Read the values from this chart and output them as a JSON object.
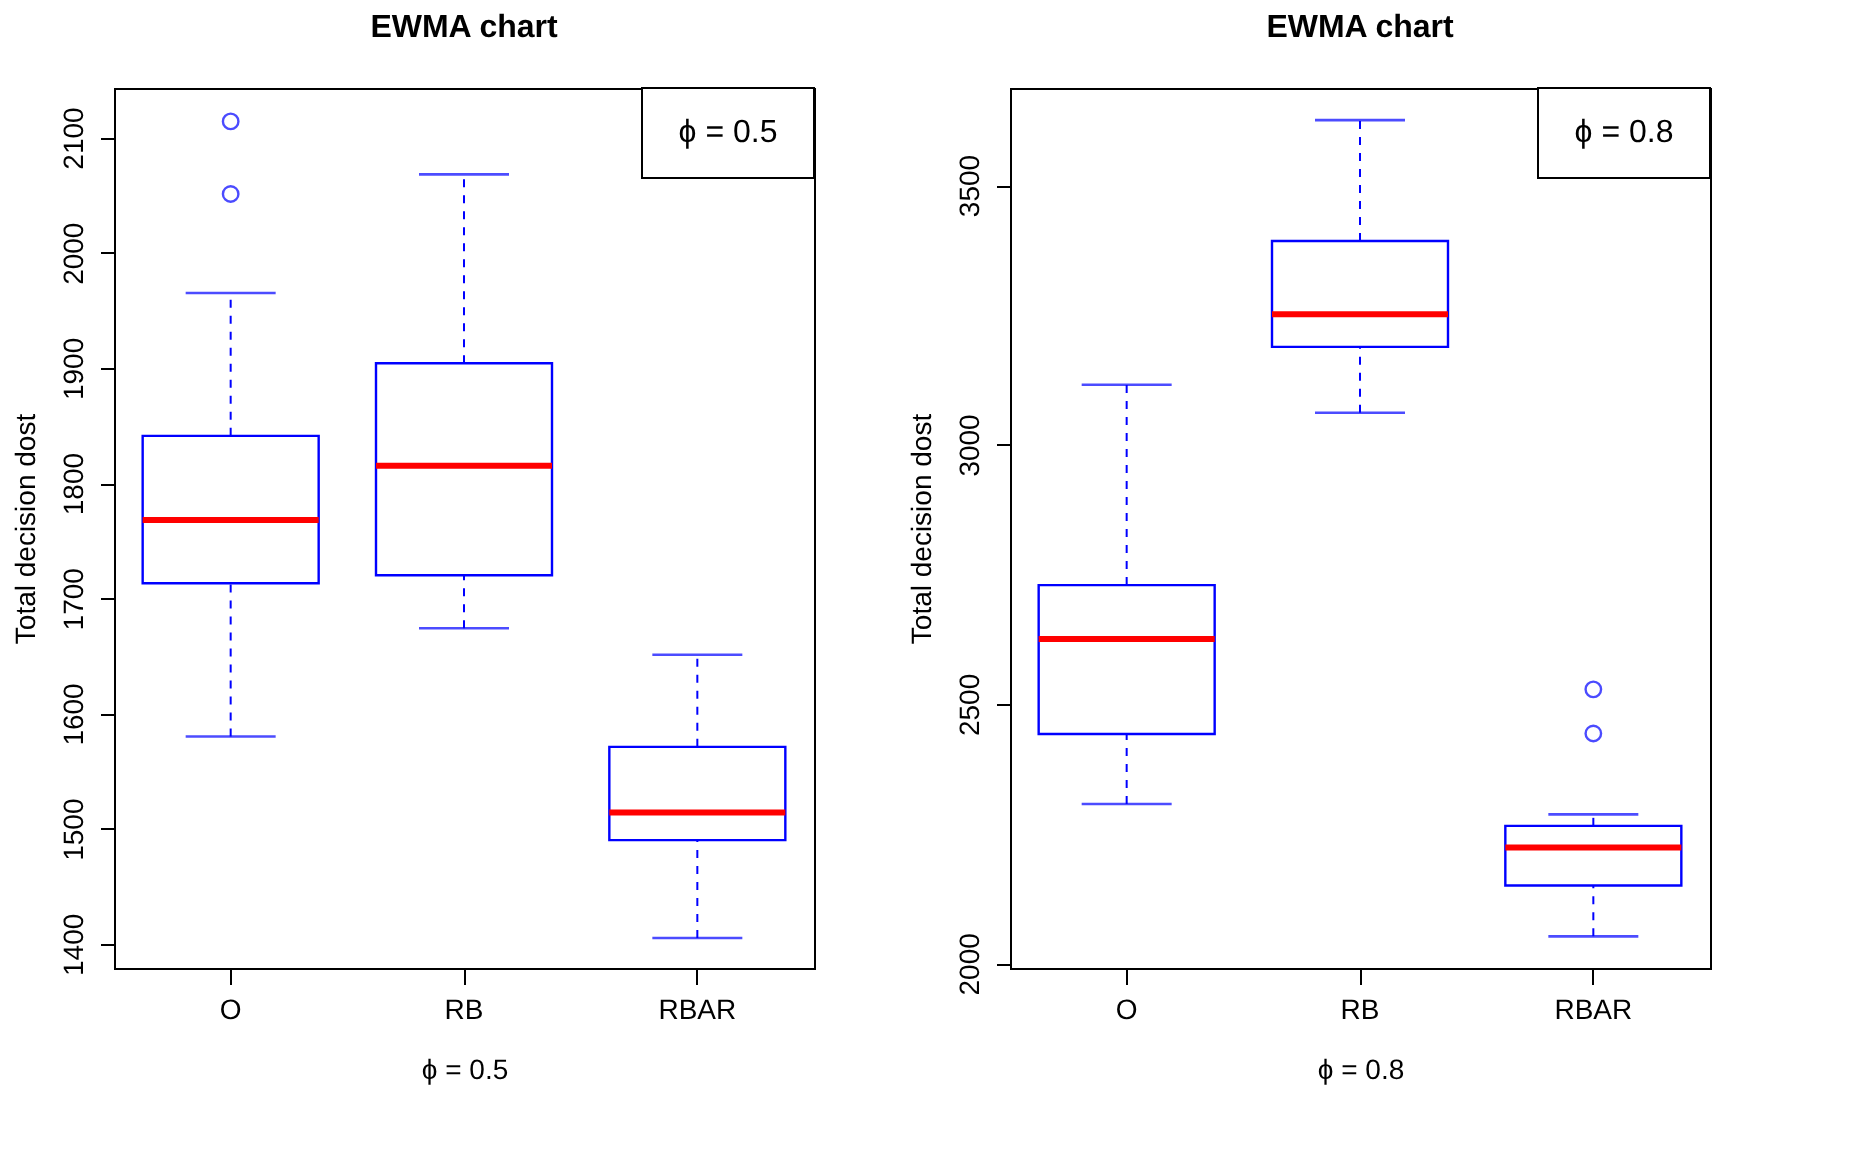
{
  "chart_data": [
    {
      "type": "box",
      "title": "EWMA chart",
      "xlabel": "ϕ = 0.5",
      "ylabel": "Total decision dost",
      "categories": [
        "O",
        "RB",
        "RBAR"
      ],
      "ylim": [
        1379,
        2143
      ],
      "yticks": [
        1400,
        1500,
        1600,
        1700,
        1800,
        1900,
        2000,
        2100
      ],
      "grid": false,
      "annotations": [
        "ϕ = 0.5"
      ],
      "series": [
        {
          "color": "#0000ff",
          "line_style": "dashed",
          "boxes": [
            {
              "low": 1580,
              "q1": 1713,
              "median": 1768,
              "q3": 1841,
              "high": 1965,
              "outliers": [
                2114,
                2051
              ]
            },
            {
              "low": 1674,
              "q1": 1720,
              "median": 1815,
              "q3": 1904,
              "high": 2068
            },
            {
              "low": 1405,
              "q1": 1490,
              "median": 1514,
              "q3": 1571,
              "high": 1651
            }
          ]
        }
      ]
    },
    {
      "type": "box",
      "title": "EWMA chart",
      "xlabel": "ϕ = 0.8",
      "ylabel": "Total decision dost",
      "categories": [
        "O",
        "RB",
        "RBAR"
      ],
      "ylim": [
        1991,
        3687
      ],
      "yticks": [
        2000,
        2500,
        3000,
        3500
      ],
      "grid": false,
      "annotations": [
        "ϕ = 0.8"
      ],
      "series": [
        {
          "color": "#0000ff",
          "line_style": "dashed",
          "boxes": [
            {
              "low": 2307,
              "q1": 2442,
              "median": 2625,
              "q3": 2729,
              "high": 3115
            },
            {
              "low": 3061,
              "q1": 3188,
              "median": 3251,
              "q3": 3392,
              "high": 3625
            },
            {
              "low": 2052,
              "q1": 2150,
              "median": 2223,
              "q3": 2265,
              "high": 2287,
              "outliers": [
                2528,
                2443
              ]
            }
          ]
        }
      ]
    }
  ]
}
